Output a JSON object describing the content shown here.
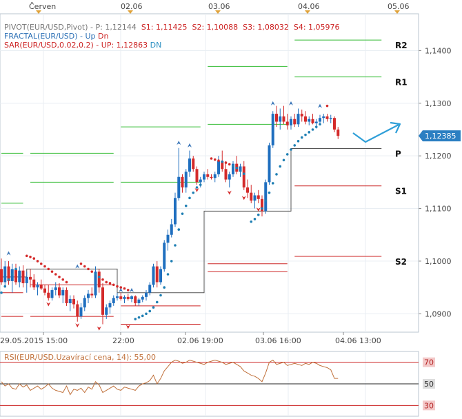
{
  "colors": {
    "up_candle": "#1f6fbf",
    "down_candle": "#d42a2a",
    "resistance": "#33bb33",
    "support": "#cc2222",
    "pivot": "#555555",
    "sar_up": "#d42a2a",
    "sar_dn": "#1f7fb3",
    "fractal_up": "#3a76b8",
    "fractal_dn": "#d42a2a",
    "rsi_line": "#c0703a",
    "rsi_70": "#cc2222",
    "rsi_50": "#222222",
    "rsi_30": "#cc2222",
    "grid": "#e9eef3",
    "price_tag_bg": "#2b7fc2",
    "arrow": "#2f9fd8",
    "rsi_label": "#c0703a"
  },
  "legend": {
    "pivot_name": "PIVOT(EUR/USD,Pivot)",
    "pivot_p": "P: 1,12144",
    "pivot_s1": "S1: 1,11425",
    "pivot_s2": "S2: 1,10088",
    "pivot_s3": "S3: 1,08032",
    "pivot_s4": "S4: 1,05976",
    "fractal_name": "FRACTAL(EUR/USD)",
    "fractal_sep": "-",
    "fractal_up": "Up",
    "fractal_dn": "Dn",
    "sar_name": "SAR(EUR/USD,0.02,0.2)",
    "sar_sep": "-",
    "sar_up": "UP: 1,12863",
    "sar_dn": "DN"
  },
  "top_axis": {
    "labels": [
      "Červen",
      "02.06",
      "03.06",
      "04.06",
      "05.06"
    ]
  },
  "bottom_axis": {
    "labels": [
      "29.05.2015 15:00",
      "22:00",
      "02.06 19:00",
      "03.06 16:00",
      "04.06 13:00"
    ]
  },
  "price_axis": {
    "labels": [
      "1,1400",
      "1,1300",
      "1,1200",
      "1,1100",
      "1,1000",
      "1,0900"
    ],
    "current": "1,12385"
  },
  "pivot_labels": [
    "R2",
    "R1",
    "P",
    "S1",
    "S2"
  ],
  "rsi": {
    "label": "RSI(EUR/USD.Uzavírací cena, 14): 55,00",
    "levels": [
      "70",
      "50",
      "30"
    ]
  },
  "chart_data": {
    "type": "candlestick",
    "symbol": "EUR/USD",
    "ylim": [
      1.0865,
      1.147
    ],
    "candles": [
      [
        1.0985,
        1.1005,
        1.0955,
        1.096
      ],
      [
        1.096,
        1.1,
        1.095,
        1.099
      ],
      [
        1.099,
        1.1,
        1.0955,
        1.0962
      ],
      [
        1.0962,
        1.0995,
        1.094,
        1.0985
      ],
      [
        1.0985,
        1.0995,
        1.0955,
        1.096
      ],
      [
        1.096,
        1.099,
        1.095,
        1.0982
      ],
      [
        1.0982,
        1.0992,
        1.095,
        1.0958
      ],
      [
        1.0958,
        1.098,
        1.094,
        1.097
      ],
      [
        1.097,
        1.0985,
        1.095,
        1.0965
      ],
      [
        1.0965,
        1.0975,
        1.0945,
        1.095
      ],
      [
        1.095,
        1.096,
        1.0935,
        1.0955
      ],
      [
        1.0955,
        1.0965,
        1.0945,
        1.0948
      ],
      [
        1.0948,
        1.0955,
        1.0935,
        1.094
      ],
      [
        1.094,
        1.0955,
        1.0925,
        1.093
      ],
      [
        1.093,
        1.095,
        1.0925,
        1.0945
      ],
      [
        1.0945,
        1.096,
        1.0935,
        1.095
      ],
      [
        1.095,
        1.0958,
        1.093,
        1.0935
      ],
      [
        1.0935,
        1.095,
        1.092,
        1.0945
      ],
      [
        1.0945,
        1.095,
        1.0915,
        1.092
      ],
      [
        1.092,
        1.0935,
        1.0905,
        1.0928
      ],
      [
        1.0928,
        1.0935,
        1.091,
        1.0918
      ],
      [
        1.0918,
        1.0925,
        1.0885,
        1.0895
      ],
      [
        1.0895,
        1.092,
        1.089,
        1.0912
      ],
      [
        1.0912,
        1.0935,
        1.0905,
        1.093
      ],
      [
        1.093,
        1.0945,
        1.092,
        1.0938
      ],
      [
        1.0938,
        1.095,
        1.093,
        1.0935
      ],
      [
        1.0935,
        1.099,
        1.093,
        1.098
      ],
      [
        1.098,
        1.0985,
        1.094,
        1.095
      ],
      [
        1.095,
        1.0958,
        1.088,
        1.0898
      ],
      [
        1.0898,
        1.0918,
        1.089,
        1.0912
      ],
      [
        1.0912,
        1.0925,
        1.09,
        1.092
      ],
      [
        1.092,
        1.0935,
        1.0915,
        1.093
      ],
      [
        1.093,
        1.094,
        1.0925,
        1.0933
      ],
      [
        1.0933,
        1.094,
        1.0925,
        1.0928
      ],
      [
        1.0928,
        1.0935,
        1.092,
        1.0932
      ],
      [
        1.0932,
        1.0938,
        1.0925,
        1.0928
      ],
      [
        1.0928,
        1.0935,
        1.0922,
        1.0933
      ],
      [
        1.0933,
        1.0935,
        1.0915,
        1.092
      ],
      [
        1.092,
        1.093,
        1.0915,
        1.0927
      ],
      [
        1.0927,
        1.0935,
        1.0922,
        1.0932
      ],
      [
        1.0932,
        1.0945,
        1.0925,
        1.094
      ],
      [
        1.094,
        1.096,
        1.0935,
        1.0955
      ],
      [
        1.0955,
        1.0995,
        1.095,
        1.099
      ],
      [
        1.099,
        1.1,
        1.095,
        1.096
      ],
      [
        1.096,
        1.099,
        1.0955,
        1.0985
      ],
      [
        1.0985,
        1.104,
        1.098,
        1.1035
      ],
      [
        1.1035,
        1.106,
        1.102,
        1.105
      ],
      [
        1.105,
        1.108,
        1.1045,
        1.107
      ],
      [
        1.107,
        1.113,
        1.1065,
        1.112
      ],
      [
        1.112,
        1.1215,
        1.1115,
        1.116
      ],
      [
        1.116,
        1.1165,
        1.113,
        1.114
      ],
      [
        1.114,
        1.1175,
        1.113,
        1.117
      ],
      [
        1.117,
        1.121,
        1.116,
        1.1195
      ],
      [
        1.1195,
        1.12,
        1.117,
        1.1175
      ],
      [
        1.1175,
        1.118,
        1.1145,
        1.115
      ],
      [
        1.115,
        1.116,
        1.114,
        1.1155
      ],
      [
        1.1155,
        1.117,
        1.115,
        1.1165
      ],
      [
        1.1165,
        1.1175,
        1.1155,
        1.116
      ],
      [
        1.116,
        1.1165,
        1.1155,
        1.1158
      ],
      [
        1.1158,
        1.117,
        1.115,
        1.1165
      ],
      [
        1.1165,
        1.12,
        1.116,
        1.119
      ],
      [
        1.119,
        1.121,
        1.117,
        1.1175
      ],
      [
        1.1175,
        1.119,
        1.115,
        1.1155
      ],
      [
        1.1155,
        1.117,
        1.114,
        1.1165
      ],
      [
        1.1165,
        1.119,
        1.116,
        1.1185
      ],
      [
        1.1185,
        1.12,
        1.1165,
        1.117
      ],
      [
        1.117,
        1.1185,
        1.116,
        1.118
      ],
      [
        1.118,
        1.119,
        1.1135,
        1.114
      ],
      [
        1.114,
        1.1155,
        1.112,
        1.113
      ],
      [
        1.113,
        1.1145,
        1.111,
        1.1115
      ],
      [
        1.1115,
        1.113,
        1.11,
        1.1125
      ],
      [
        1.1125,
        1.1135,
        1.111,
        1.1118
      ],
      [
        1.1118,
        1.1125,
        1.1085,
        1.1095
      ],
      [
        1.1095,
        1.1155,
        1.109,
        1.115
      ],
      [
        1.115,
        1.1225,
        1.1145,
        1.122
      ],
      [
        1.122,
        1.1285,
        1.1215,
        1.128
      ],
      [
        1.128,
        1.1295,
        1.1255,
        1.1265
      ],
      [
        1.1265,
        1.129,
        1.125,
        1.1275
      ],
      [
        1.1275,
        1.1295,
        1.126,
        1.1265
      ],
      [
        1.1265,
        1.128,
        1.125,
        1.1258
      ],
      [
        1.1258,
        1.1275,
        1.125,
        1.127
      ],
      [
        1.127,
        1.128,
        1.1255,
        1.126
      ],
      [
        1.126,
        1.129,
        1.1255,
        1.128
      ],
      [
        1.128,
        1.1288,
        1.1265,
        1.1275
      ],
      [
        1.1275,
        1.1285,
        1.126,
        1.1265
      ],
      [
        1.1265,
        1.1275,
        1.1258,
        1.127
      ],
      [
        1.127,
        1.128,
        1.126,
        1.1262
      ],
      [
        1.1262,
        1.127,
        1.1252,
        1.1265
      ],
      [
        1.1265,
        1.1278,
        1.126,
        1.1272
      ],
      [
        1.1272,
        1.128,
        1.1262,
        1.1275
      ],
      [
        1.1275,
        1.128,
        1.1265,
        1.127
      ],
      [
        1.127,
        1.1278,
        1.1262,
        1.1272
      ],
      [
        1.1272,
        1.1275,
        1.1245,
        1.125
      ],
      [
        1.125,
        1.1255,
        1.1232,
        1.1238
      ]
    ],
    "sar": [
      {
        "x": 0,
        "v": 1.094
      },
      {
        "x": 1,
        "v": 1.0952
      },
      {
        "x": 2,
        "v": 1.0965
      },
      {
        "x": 3,
        "v": 1.0975
      },
      {
        "x": 4,
        "v": 1.0985
      },
      {
        "x": 7,
        "v": 1.101
      },
      {
        "x": 8,
        "v": 1.1008
      },
      {
        "x": 9,
        "v": 1.1005
      },
      {
        "x": 10,
        "v": 1.1
      },
      {
        "x": 11,
        "v": 1.0995
      },
      {
        "x": 12,
        "v": 1.099
      },
      {
        "x": 13,
        "v": 1.0985
      },
      {
        "x": 14,
        "v": 1.098
      },
      {
        "x": 15,
        "v": 1.0975
      },
      {
        "x": 16,
        "v": 1.097
      },
      {
        "x": 17,
        "v": 1.0965
      },
      {
        "x": 18,
        "v": 1.096
      },
      {
        "x": 22,
        "v": 1.0995
      },
      {
        "x": 23,
        "v": 1.099
      },
      {
        "x": 24,
        "v": 1.0985
      },
      {
        "x": 25,
        "v": 1.098
      },
      {
        "x": 26,
        "v": 1.0975
      },
      {
        "x": 27,
        "v": 1.097
      },
      {
        "x": 28,
        "v": 1.0965
      },
      {
        "x": 29,
        "v": 1.096
      },
      {
        "x": 30,
        "v": 1.0958
      },
      {
        "x": 31,
        "v": 1.0955
      },
      {
        "x": 32,
        "v": 1.0952
      },
      {
        "x": 33,
        "v": 1.095
      },
      {
        "x": 34,
        "v": 1.0948
      },
      {
        "x": 35,
        "v": 1.0945
      },
      {
        "x": 37,
        "v": 1.089
      },
      {
        "x": 38,
        "v": 1.0893
      },
      {
        "x": 39,
        "v": 1.0896
      },
      {
        "x": 40,
        "v": 1.09
      },
      {
        "x": 41,
        "v": 1.0905
      },
      {
        "x": 42,
        "v": 1.0912
      },
      {
        "x": 43,
        "v": 1.0922
      },
      {
        "x": 44,
        "v": 1.0935
      },
      {
        "x": 45,
        "v": 1.095
      },
      {
        "x": 46,
        "v": 1.0975
      },
      {
        "x": 47,
        "v": 1.1
      },
      {
        "x": 48,
        "v": 1.103
      },
      {
        "x": 49,
        "v": 1.106
      },
      {
        "x": 50,
        "v": 1.109
      },
      {
        "x": 51,
        "v": 1.1105
      },
      {
        "x": 52,
        "v": 1.112
      },
      {
        "x": 53,
        "v": 1.113
      },
      {
        "x": 54,
        "v": 1.114
      },
      {
        "x": 55,
        "v": 1.1145
      },
      {
        "x": 58,
        "v": 1.1195
      },
      {
        "x": 59,
        "v": 1.1193
      },
      {
        "x": 60,
        "v": 1.1191
      },
      {
        "x": 61,
        "v": 1.1189
      },
      {
        "x": 62,
        "v": 1.1187
      },
      {
        "x": 63,
        "v": 1.1184
      },
      {
        "x": 64,
        "v": 1.1181
      },
      {
        "x": 65,
        "v": 1.1177
      },
      {
        "x": 66,
        "v": 1.1172
      },
      {
        "x": 67,
        "v": 1.1166
      },
      {
        "x": 69,
        "v": 1.1075
      },
      {
        "x": 70,
        "v": 1.108
      },
      {
        "x": 71,
        "v": 1.1088
      },
      {
        "x": 72,
        "v": 1.11
      },
      {
        "x": 73,
        "v": 1.1115
      },
      {
        "x": 74,
        "v": 1.113
      },
      {
        "x": 75,
        "v": 1.1148
      },
      {
        "x": 76,
        "v": 1.1165
      },
      {
        "x": 77,
        "v": 1.118
      },
      {
        "x": 78,
        "v": 1.1192
      },
      {
        "x": 79,
        "v": 1.1203
      },
      {
        "x": 80,
        "v": 1.1212
      },
      {
        "x": 81,
        "v": 1.122
      },
      {
        "x": 82,
        "v": 1.1228
      },
      {
        "x": 83,
        "v": 1.1235
      },
      {
        "x": 84,
        "v": 1.124
      },
      {
        "x": 85,
        "v": 1.1245
      },
      {
        "x": 86,
        "v": 1.125
      },
      {
        "x": 87,
        "v": 1.1255
      },
      {
        "x": 88,
        "v": 1.126
      },
      {
        "x": 90,
        "v": 1.1295
      }
    ],
    "fractals_up": [
      {
        "x": 2,
        "v": 1.1015
      },
      {
        "x": 21,
        "v": 1.099
      },
      {
        "x": 33,
        "v": 1.0945
      },
      {
        "x": 36,
        "v": 1.0945
      },
      {
        "x": 49,
        "v": 1.1225
      },
      {
        "x": 52,
        "v": 1.122
      },
      {
        "x": 75,
        "v": 1.13
      },
      {
        "x": 80,
        "v": 1.13
      },
      {
        "x": 88,
        "v": 1.1295
      }
    ],
    "fractals_dn": [
      {
        "x": 13,
        "v": 1.0918
      },
      {
        "x": 21,
        "v": 1.0878
      },
      {
        "x": 27,
        "v": 1.0872
      },
      {
        "x": 35,
        "v": 1.0875
      },
      {
        "x": 54,
        "v": 1.1135
      },
      {
        "x": 63,
        "v": 1.113
      },
      {
        "x": 67,
        "v": 1.112
      },
      {
        "x": 71,
        "v": 1.1098
      }
    ],
    "pivot_segments": [
      {
        "from": 0,
        "to": 6,
        "R2": 1.1205,
        "R1": 1.111,
        "P": 1.097,
        "S1": 1.094,
        "S2": 1.0895
      },
      {
        "from": 8,
        "to": 31,
        "R2": 1.1205,
        "R1": 1.115,
        "P": 1.0985,
        "S1": 1.0955,
        "S2": 1.0895
      },
      {
        "from": 33,
        "to": 55,
        "R2": 1.1255,
        "R1": 1.115,
        "P": 1.094,
        "S1": 1.0915,
        "S2": 1.088
      },
      {
        "from": 57,
        "to": 79,
        "R2": 1.137,
        "R1": 1.126,
        "P": 1.1095,
        "S1": 1.0995,
        "S2": 1.098
      },
      {
        "from": 81,
        "to": 105,
        "R2": 1.142,
        "R1": 1.135,
        "P": 1.1214,
        "S1": 1.1143,
        "S2": 1.1009
      }
    ],
    "rsi": {
      "ylim": [
        20,
        80
      ],
      "levels": [
        70,
        50,
        30
      ],
      "values": [
        52,
        48,
        50,
        46,
        45,
        50,
        47,
        49,
        44,
        46,
        48,
        45,
        47,
        50,
        46,
        44,
        43,
        42,
        48,
        40,
        45,
        44,
        46,
        42,
        47,
        45,
        52,
        49,
        42,
        44,
        46,
        48,
        45,
        44,
        47,
        46,
        45,
        44,
        48,
        50,
        51,
        53,
        58,
        50,
        55,
        62,
        66,
        70,
        72,
        71,
        69,
        70,
        72,
        71,
        70,
        69,
        68,
        70,
        71,
        72,
        71,
        70,
        68,
        69,
        70,
        68,
        66,
        62,
        60,
        58,
        57,
        55,
        52,
        60,
        70,
        72,
        68,
        69,
        70,
        67,
        68,
        69,
        68,
        67,
        69,
        68,
        70,
        69,
        67,
        66,
        65,
        63,
        55,
        55
      ]
    }
  }
}
